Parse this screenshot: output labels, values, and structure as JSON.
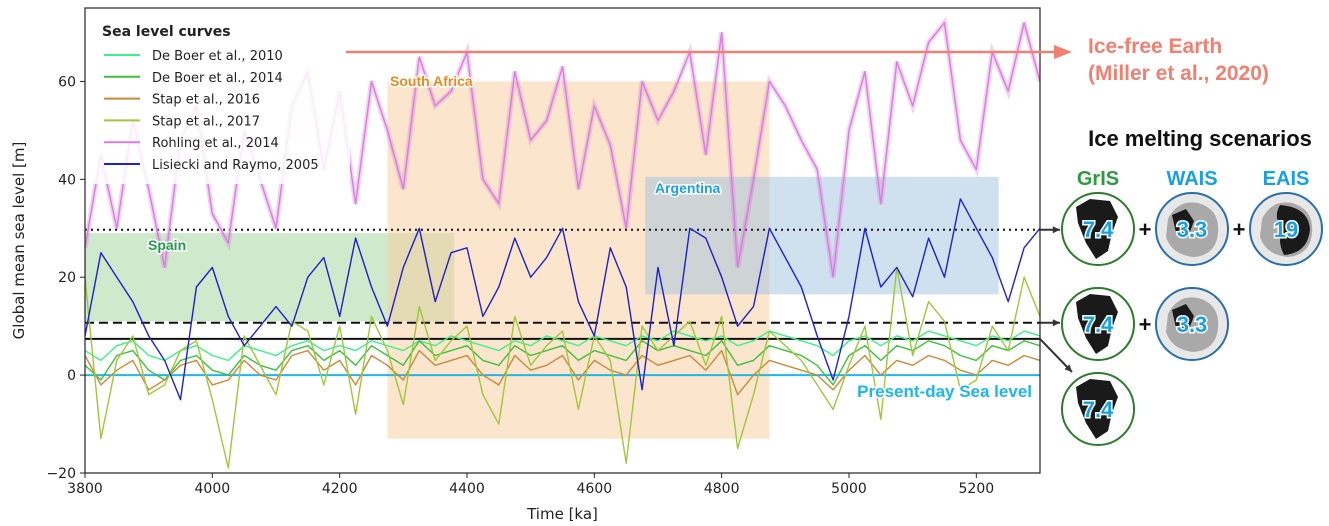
{
  "chart_data": {
    "type": "line",
    "xlabel": "Time [ka]",
    "ylabel": "Global mean sea level [m]",
    "xlim": [
      3800,
      5300
    ],
    "ylim": [
      -20,
      75
    ],
    "xticks": [
      3800,
      4000,
      4200,
      4400,
      4600,
      4800,
      5000,
      5200
    ],
    "yticks": [
      -20,
      0,
      20,
      40,
      60
    ],
    "grid": false,
    "legend": {
      "title": "Sea level curves",
      "placement": "top-left",
      "entries": [
        {
          "label": "De Boer et al., 2010",
          "color": "#3df08a"
        },
        {
          "label": "De Boer et al., 2014",
          "color": "#3fbf3f"
        },
        {
          "label": "Stap et al., 2016",
          "color": "#c98a3a"
        },
        {
          "label": "Stap et al., 2017",
          "color": "#9cc83a"
        },
        {
          "label": "Rohling et al., 2014",
          "color": "#d77fdc"
        },
        {
          "label": "Lisiecki and Raymo, 2005",
          "color": "#1e22c8"
        }
      ]
    },
    "regions": [
      {
        "label": "Spain",
        "x": [
          3800,
          4380
        ],
        "y": [
          11,
          29
        ],
        "color": "#9fd39b",
        "label_color": "#1e9a4a"
      },
      {
        "label": "South Africa",
        "x": [
          4275,
          4875
        ],
        "y": [
          -13,
          60
        ],
        "color": "#f9cb9c",
        "label_color": "#e58a1f"
      },
      {
        "label": "Argentina",
        "x": [
          4680,
          5235
        ],
        "y": [
          16.5,
          40.5
        ],
        "color": "#9fc2e0",
        "label_color": "#1a9fe0"
      }
    ],
    "reference_lines": [
      {
        "name": "Present-day Sea level",
        "y": 0,
        "style": "solid",
        "color": "#1fb6e8"
      },
      {
        "name": "GrIS + WAIS + EAIS",
        "y": 29.7,
        "style": "dotted",
        "color": "#111111"
      },
      {
        "name": "GrIS + WAIS",
        "y": 10.7,
        "style": "dashed",
        "color": "#111111"
      },
      {
        "name": "GrIS",
        "y": 7.4,
        "style": "solid",
        "color": "#111111"
      }
    ],
    "series": [
      {
        "name": "De Boer et al., 2010",
        "color": "#3df08a",
        "x_start": 3800,
        "x_step": 25,
        "values": [
          5,
          3,
          6,
          7,
          4,
          3,
          5,
          6,
          4,
          3,
          6,
          5,
          4,
          6,
          7,
          5,
          6,
          5,
          7,
          6,
          5,
          7,
          6,
          8,
          7,
          6,
          5,
          7,
          6,
          8,
          7,
          6,
          8,
          7,
          6,
          8,
          7,
          9,
          8,
          7,
          8,
          6,
          7,
          9,
          8,
          7,
          6,
          4,
          7,
          8,
          6,
          8,
          7,
          9,
          8,
          7,
          6,
          8,
          7,
          9,
          8
        ]
      },
      {
        "name": "De Boer et al., 2014",
        "color": "#3fbf3f",
        "x_start": 3800,
        "x_step": 25,
        "values": [
          2,
          -1,
          4,
          5,
          1,
          -1,
          3,
          4,
          1,
          0,
          4,
          2,
          1,
          5,
          6,
          3,
          5,
          2,
          6,
          4,
          2,
          7,
          4,
          5,
          6,
          3,
          2,
          6,
          4,
          5,
          6,
          3,
          5,
          4,
          3,
          7,
          5,
          6,
          5,
          4,
          7,
          2,
          3,
          6,
          5,
          4,
          2,
          -2,
          4,
          6,
          3,
          6,
          5,
          7,
          6,
          4,
          3,
          6,
          5,
          7,
          6
        ]
      },
      {
        "name": "Stap et al., 2016",
        "color": "#c98a3a",
        "x_start": 3800,
        "x_step": 25,
        "values": [
          4,
          -2,
          1,
          3,
          -3,
          -1,
          2,
          3,
          -2,
          -1,
          3,
          0,
          -1,
          4,
          5,
          1,
          3,
          -2,
          4,
          2,
          -1,
          5,
          2,
          3,
          4,
          0,
          -2,
          4,
          1,
          2,
          4,
          -1,
          3,
          1,
          0,
          4,
          2,
          3,
          4,
          1,
          5,
          -4,
          0,
          3,
          2,
          1,
          0,
          -3,
          1,
          4,
          0,
          3,
          2,
          4,
          3,
          1,
          0,
          3,
          2,
          4,
          3
        ]
      },
      {
        "name": "Stap et al., 2017",
        "color": "#9cc83a",
        "x_start": 3800,
        "x_step": 25,
        "values": [
          20,
          -13,
          3,
          8,
          -4,
          -2,
          5,
          7,
          -5,
          -19,
          8,
          2,
          -4,
          11,
          9,
          -2,
          10,
          -8,
          12,
          5,
          -6,
          14,
          3,
          7,
          10,
          -4,
          -10,
          12,
          2,
          6,
          9,
          -7,
          8,
          3,
          -18,
          10,
          5,
          8,
          11,
          2,
          12,
          -15,
          -4,
          9,
          6,
          3,
          -2,
          -7,
          2,
          10,
          -9,
          22,
          4,
          15,
          11,
          -3,
          -1,
          10,
          5,
          20,
          12
        ]
      },
      {
        "name": "Rohling et al., 2014",
        "color": "#d77fdc",
        "x_start": 3800,
        "x_step": 25,
        "values": [
          26,
          45,
          30,
          52,
          38,
          22,
          48,
          55,
          33,
          27,
          50,
          40,
          30,
          55,
          62,
          42,
          58,
          35,
          60,
          50,
          38,
          65,
          55,
          58,
          66,
          40,
          35,
          62,
          48,
          52,
          63,
          38,
          55,
          47,
          30,
          60,
          52,
          58,
          66,
          45,
          70,
          22,
          40,
          60,
          55,
          48,
          42,
          20,
          50,
          62,
          35,
          64,
          55,
          68,
          72,
          48,
          42,
          66,
          58,
          72,
          60
        ]
      },
      {
        "name": "Lisiecki and Raymo, 2005",
        "color": "#1e22c8",
        "x_start": 3800,
        "x_step": 25,
        "values": [
          8,
          25,
          20,
          15,
          8,
          3,
          -5,
          18,
          22,
          12,
          6,
          10,
          14,
          10,
          20,
          24,
          12,
          28,
          18,
          10,
          22,
          30,
          15,
          25,
          26,
          12,
          18,
          28,
          20,
          24,
          30,
          15,
          8,
          26,
          18,
          -3,
          22,
          6,
          30,
          28,
          20,
          10,
          14,
          30,
          24,
          18,
          8,
          -1,
          12,
          30,
          18,
          22,
          16,
          28,
          20,
          36,
          30,
          24,
          15,
          26,
          30
        ]
      }
    ]
  },
  "annotations": {
    "ice_free": {
      "line1": "Ice-free Earth",
      "line2": "(Miller et al., 2020)",
      "y": 66,
      "color": "#f08072"
    },
    "present_day_label": "Present-day Sea level"
  },
  "scenarios": {
    "title": "Ice melting scenarios",
    "headers": [
      {
        "label": "GrIS",
        "color": "#2e9a3e"
      },
      {
        "label": "WAIS",
        "color": "#1a9fe0"
      },
      {
        "label": "EAIS",
        "color": "#1a9fe0"
      }
    ],
    "rows": [
      {
        "items": [
          {
            "sheet": "GrIS",
            "value": "7.4"
          },
          {
            "sheet": "WAIS",
            "value": "3.3"
          },
          {
            "sheet": "EAIS",
            "value": "19"
          }
        ]
      },
      {
        "items": [
          {
            "sheet": "GrIS",
            "value": "7.4"
          },
          {
            "sheet": "WAIS",
            "value": "3.3"
          }
        ]
      },
      {
        "items": [
          {
            "sheet": "GrIS",
            "value": "7.4"
          }
        ]
      }
    ],
    "plus_symbol": "+",
    "circle_border_colors": {
      "GrIS": "#2e7a2e",
      "WAIS": "#2a6fa5",
      "EAIS": "#2a6fa5"
    }
  }
}
